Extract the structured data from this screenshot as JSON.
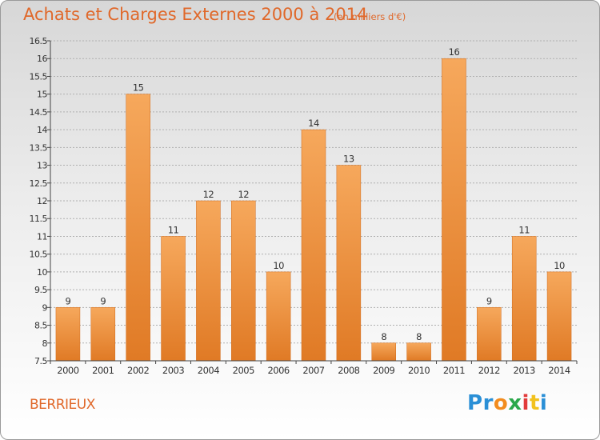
{
  "title": "Achats et Charges Externes 2000 à 2014",
  "subtitle": "(en milliers d'€)",
  "commune": "BERRIEUX",
  "logo": {
    "letters": [
      "P",
      "r",
      "o",
      "x",
      "i",
      "t",
      "i"
    ],
    "colors": [
      "#2a8fd6",
      "#2a8fd6",
      "#f28c1e",
      "#2aa84a",
      "#e23b3b",
      "#f2c21e",
      "#2a8fd6"
    ]
  },
  "colors": {
    "bar": "#f0963f",
    "bar_dark": "#e07a25",
    "title": "#e0682a",
    "axis": "#333333"
  },
  "chart_data": {
    "type": "bar",
    "title": "Achats et Charges Externes 2000 à 2014",
    "subtitle": "(en milliers d'€)",
    "categories": [
      "2000",
      "2001",
      "2002",
      "2003",
      "2004",
      "2005",
      "2006",
      "2007",
      "2008",
      "2009",
      "2010",
      "2011",
      "2012",
      "2013",
      "2014"
    ],
    "values": [
      9,
      9,
      15,
      11,
      12,
      12,
      10,
      14,
      13,
      8,
      8,
      16,
      9,
      11,
      10
    ],
    "data_labels": [
      "9",
      "9",
      "15",
      "11",
      "12",
      "12",
      "10",
      "14",
      "13",
      "8",
      "8",
      "16",
      "9",
      "11",
      "10"
    ],
    "ylim": [
      7.5,
      16.5
    ],
    "yticks": [
      7.5,
      8,
      8.5,
      9,
      9.5,
      10,
      10.5,
      11,
      11.5,
      12,
      12.5,
      13,
      13.5,
      14,
      14.5,
      15,
      15.5,
      16,
      16.5
    ],
    "ytick_labels": [
      "7.5",
      "8",
      "8.5",
      "9",
      "9.5",
      "10",
      "10.5",
      "11",
      "11.5",
      "12",
      "12.5",
      "13",
      "13.5",
      "14",
      "14.5",
      "15",
      "15.5",
      "16",
      "16.5"
    ],
    "grid": true,
    "xlabel": "",
    "ylabel": ""
  }
}
